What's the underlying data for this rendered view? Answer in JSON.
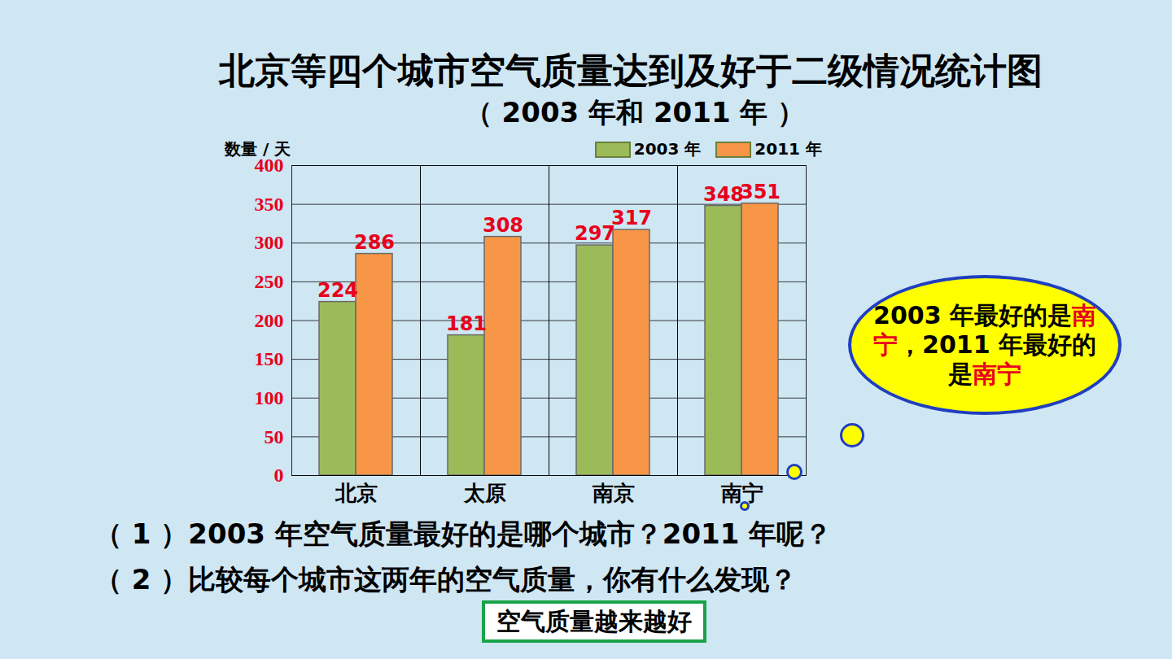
{
  "chart_data": {
    "type": "bar",
    "title": "北京等四个城市空气质量达到及好于二级情况统计图",
    "subtitle": "（ 2003 年和 2011 年 ）",
    "y_label": "数量 / 天",
    "categories": [
      "北京",
      "太原",
      "南京",
      "南宁"
    ],
    "series": [
      {
        "name": "2003 年",
        "color": "#9bbb59",
        "values": [
          224,
          181,
          297,
          348
        ]
      },
      {
        "name": "2011 年",
        "color": "#f79646",
        "values": [
          286,
          308,
          317,
          351
        ]
      }
    ],
    "ylim": [
      0,
      400
    ],
    "yticks": [
      0,
      50,
      100,
      150,
      200,
      250,
      300,
      350,
      400
    ],
    "grid": true,
    "legend": "top-right",
    "data_labels": true
  },
  "callout": [
    "2003 年最好的是",
    "南宁",
    "，2011 年最好的是",
    "南宁"
  ],
  "questions": [
    "（ 1 ）2003 年空气质量最好的是哪个城市？2011 年呢？",
    "（ 2 ）比较每个城市这两年的空气质量，你有什么发现？"
  ],
  "answer": "空气质量越来越好"
}
